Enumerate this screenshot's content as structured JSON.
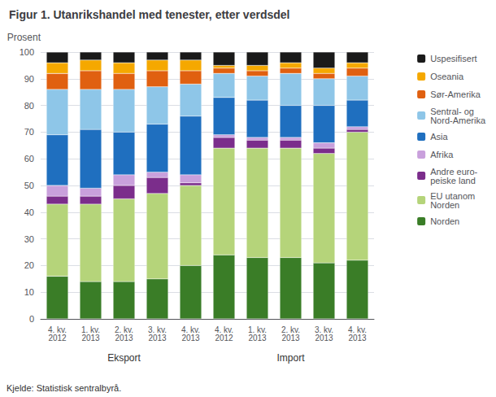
{
  "chart_data": {
    "type": "bar",
    "stacked": true,
    "title": "Figur 1. Utanrikshandel med tenester, etter verdsdel",
    "ylabel": "Prosent",
    "annotations": [
      "Kjelde: Statistisk sentralbyrå."
    ],
    "groups": [
      "Eksport",
      "Import"
    ],
    "categories": [
      "4. kv.\n2012",
      "1. kv.\n2013",
      "2. kv.\n2013",
      "3. kv.\n2013",
      "4. kv.\n2013",
      "4. kv.\n2012",
      "1. kv.\n2013",
      "2. kv.\n2013",
      "3. kv.\n2013",
      "4. kv.\n2013"
    ],
    "series": [
      {
        "name": "Norden",
        "color": "#3a7d27",
        "values": [
          16,
          14,
          14,
          15,
          20,
          24,
          23,
          23,
          21,
          22
        ]
      },
      {
        "name": "EU utanom\nNorden",
        "color": "#b5d47a",
        "values": [
          27,
          29,
          31,
          32,
          30,
          40,
          41,
          41,
          41,
          48
        ]
      },
      {
        "name": "Andre euro-\npeiske land",
        "color": "#7b2d8b",
        "values": [
          3,
          3,
          5,
          6,
          1,
          4,
          3,
          3,
          2,
          1
        ]
      },
      {
        "name": "Afrika",
        "color": "#c9a0dc",
        "values": [
          4,
          3,
          4,
          2,
          3,
          1,
          1,
          1,
          2,
          1
        ]
      },
      {
        "name": "Asia",
        "color": "#1f6fbf",
        "values": [
          19,
          22,
          16,
          18,
          22,
          14,
          14,
          12,
          14,
          10
        ]
      },
      {
        "name": "Sentral- og\nNord-Amerika",
        "color": "#8ec6e8",
        "values": [
          17,
          15,
          16,
          14,
          12,
          9,
          9,
          12,
          10,
          9
        ]
      },
      {
        "name": "Sør-Amerika",
        "color": "#e06010",
        "values": [
          6,
          7,
          6,
          6,
          5,
          2,
          2,
          2,
          2,
          3
        ]
      },
      {
        "name": "Oseania",
        "color": "#f5a800",
        "values": [
          4,
          4,
          4,
          4,
          4,
          1,
          2,
          2,
          2,
          2
        ]
      },
      {
        "name": "Uspesifisert",
        "color": "#1a1a1a",
        "values": [
          4,
          3,
          4,
          3,
          3,
          5,
          5,
          4,
          6,
          4
        ]
      }
    ],
    "ylim": [
      0,
      100
    ],
    "yticks": [
      0,
      10,
      20,
      30,
      40,
      50,
      60,
      70,
      80,
      90,
      100
    ],
    "grid": true,
    "legend": "right"
  }
}
